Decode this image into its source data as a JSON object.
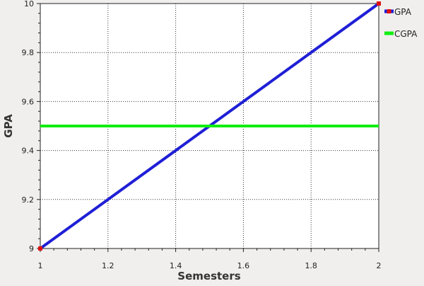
{
  "chart_data": {
    "type": "line",
    "title": "",
    "xlabel": "Semesters",
    "ylabel": "GPA",
    "xlim": [
      1,
      2
    ],
    "ylim": [
      9,
      10
    ],
    "x_ticks": [
      1,
      1.2,
      1.4,
      1.6,
      1.8,
      2
    ],
    "y_ticks": [
      9,
      9.2,
      9.4,
      9.6,
      9.8,
      10
    ],
    "x_tick_labels": [
      "1",
      "1.2",
      "1.4",
      "1.6",
      "1.8",
      "2"
    ],
    "y_tick_labels": [
      "9",
      "9.2",
      "9.4",
      "9.6",
      "9.8",
      "10"
    ],
    "grid": true,
    "legend_position": "top-right, outside plot",
    "series": [
      {
        "name": "GPA",
        "x": [
          1,
          2
        ],
        "y": [
          9,
          10
        ],
        "color": "#1f1fd6",
        "marker": "square",
        "marker_color": "#e01010"
      },
      {
        "name": "CGPA",
        "x": [
          1,
          2
        ],
        "y": [
          9.5,
          9.5
        ],
        "color": "#11ee11",
        "marker": "none"
      }
    ]
  }
}
